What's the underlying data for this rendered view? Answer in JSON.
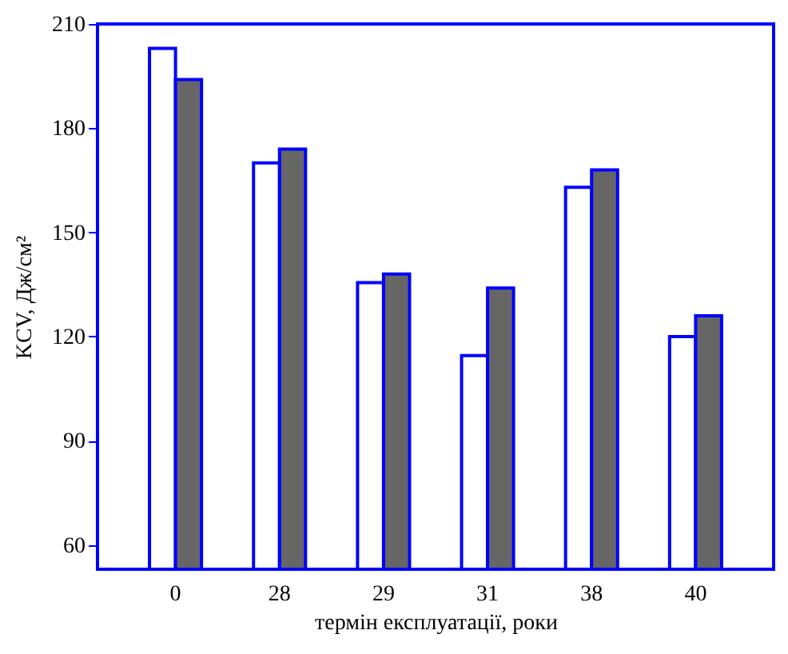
{
  "chart_data": {
    "type": "bar",
    "xlabel": "термін експлуатації, роки",
    "ylabel": "KCV, Дж/см²",
    "categories": [
      "0",
      "28",
      "29",
      "31",
      "38",
      "40"
    ],
    "series": [
      {
        "color": "#ffffff",
        "values": [
          203,
          170,
          135.5,
          114.5,
          163,
          120
        ]
      },
      {
        "color": "#666666",
        "values": [
          194,
          174,
          138,
          134,
          168,
          126
        ]
      }
    ],
    "ylim": [
      53,
      210
    ],
    "yticks": [
      60,
      90,
      120,
      150,
      180,
      210
    ],
    "grid": false,
    "legend": false
  }
}
